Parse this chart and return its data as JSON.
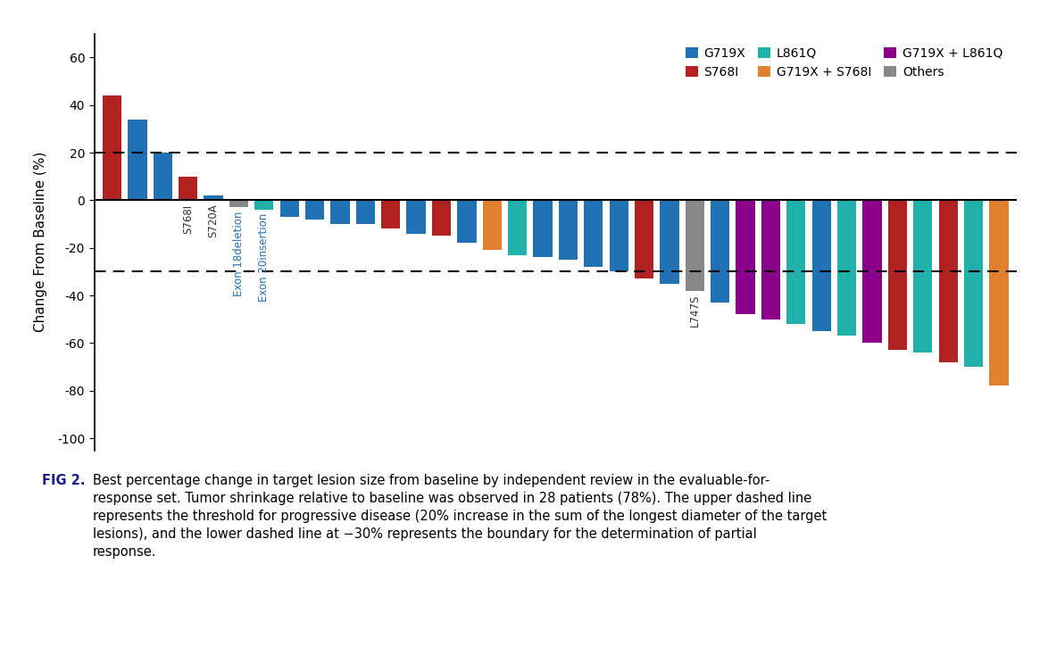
{
  "values": [
    44,
    34,
    20,
    10,
    2,
    -3,
    -4,
    -7,
    -8,
    -10,
    -10,
    -12,
    -14,
    -15,
    -18,
    -21,
    -23,
    -24,
    -25,
    -28,
    -30,
    -33,
    -35,
    -38,
    -43,
    -48,
    -50,
    -52,
    -55,
    -57,
    -60,
    -63,
    -64,
    -68,
    -70,
    -78
  ],
  "colors": [
    "#b22222",
    "#2171b5",
    "#2171b5",
    "#b22222",
    "#2171b5",
    "#888888",
    "#20b2aa",
    "#2171b5",
    "#2171b5",
    "#2171b5",
    "#2171b5",
    "#b22222",
    "#2171b5",
    "#b22222",
    "#2171b5",
    "#e08030",
    "#20b2aa",
    "#2171b5",
    "#2171b5",
    "#2171b5",
    "#2171b5",
    "#b22222",
    "#2171b5",
    "#888888",
    "#2171b5",
    "#8b008b",
    "#8b008b",
    "#20b2aa",
    "#2171b5",
    "#20b2aa",
    "#8b008b",
    "#b22222",
    "#20b2aa",
    "#b22222",
    "#20b2aa",
    "#e08030"
  ],
  "annotations": [
    {
      "idx": 3,
      "text": "S768I",
      "color": "#333333"
    },
    {
      "idx": 4,
      "text": "S720A",
      "color": "#333333"
    },
    {
      "idx": 5,
      "text": "Exon 18deletion",
      "color": "#2171b5"
    },
    {
      "idx": 6,
      "text": "Exon 20insertion",
      "color": "#2171b5"
    },
    {
      "idx": 23,
      "text": "L747S",
      "color": "#333333"
    }
  ],
  "ylabel": "Change From Baseline (%)",
  "ylim": [
    -105,
    70
  ],
  "yticks": [
    -100,
    -80,
    -60,
    -40,
    -20,
    0,
    20,
    40,
    60
  ],
  "dashed_lines": [
    20,
    -30
  ],
  "legend_entries": [
    {
      "label": "G719X",
      "color": "#2171b5"
    },
    {
      "label": "S768I",
      "color": "#b22222"
    },
    {
      "label": "L861Q",
      "color": "#20b2aa"
    },
    {
      "label": "G719X + S768I",
      "color": "#e08030"
    },
    {
      "label": "G719X + L861Q",
      "color": "#8b008b"
    },
    {
      "label": "Others",
      "color": "#888888"
    }
  ]
}
